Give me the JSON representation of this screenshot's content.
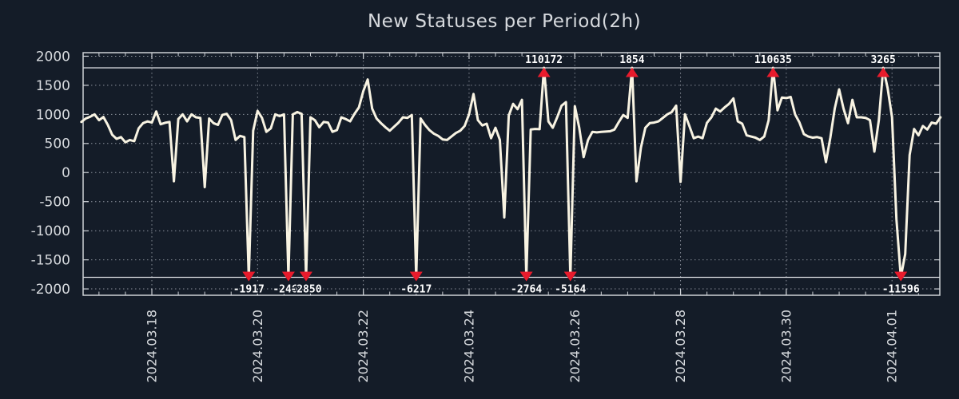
{
  "title": "New Statuses per Period(2h)",
  "colors": {
    "background": "#141c28",
    "line": "#f8f3e2",
    "grid": "#878d97",
    "frame": "#cdd1d6",
    "clip_line": "#dde0e4",
    "text": "#d7dade",
    "annotation_text": "#ffffff",
    "marker": "#e81b2c"
  },
  "chart_data": {
    "type": "line",
    "title": "New Statuses per Period(2h)",
    "grid": true,
    "legend": false,
    "x_axis": {
      "start": "2024-03-16 16:00",
      "step_hours": 2,
      "tick_labels": [
        "2024.03.18",
        "2024.03.20",
        "2024.03.22",
        "2024.03.24",
        "2024.03.26",
        "2024.03.28",
        "2024.03.30",
        "2024.04.01"
      ],
      "tick_indices": [
        16,
        40,
        64,
        88,
        112,
        136,
        160,
        184
      ],
      "minor_tick_every": 6
    },
    "y_axis": {
      "min": -2000,
      "max": 2000,
      "tick_step": 500,
      "tick_labels": [
        "2000",
        "1500",
        "1000",
        "500",
        "0",
        "-500",
        "-1000",
        "-1500",
        "-2000"
      ],
      "tick_values": [
        2000,
        1500,
        1000,
        500,
        0,
        -500,
        -1000,
        -1500,
        -2000
      ]
    },
    "clip_limits": [
      -1800,
      1800
    ],
    "series": [
      {
        "name": "new_statuses",
        "values": [
          870,
          930,
          960,
          1000,
          900,
          955,
          820,
          650,
          580,
          610,
          520,
          560,
          540,
          760,
          850,
          880,
          860,
          1050,
          830,
          855,
          870,
          -150,
          920,
          1000,
          880,
          1000,
          950,
          940,
          -250,
          930,
          850,
          820,
          990,
          1010,
          900,
          560,
          630,
          610,
          -1917,
          720,
          1060,
          940,
          700,
          760,
          1000,
          970,
          1000,
          -2469,
          1000,
          1040,
          1010,
          -2850,
          950,
          900,
          780,
          870,
          860,
          700,
          730,
          950,
          920,
          880,
          1010,
          1120,
          1400,
          1600,
          1100,
          930,
          850,
          780,
          720,
          790,
          860,
          950,
          940,
          990,
          -6217,
          930,
          820,
          730,
          670,
          630,
          570,
          560,
          620,
          680,
          720,
          800,
          1000,
          1350,
          900,
          810,
          840,
          590,
          770,
          560,
          -770,
          980,
          1180,
          1090,
          1250,
          -2764,
          740,
          750,
          745,
          110172,
          880,
          770,
          950,
          1150,
          1210,
          -5164,
          1140,
          770,
          265,
          560,
          700,
          690,
          700,
          705,
          710,
          740,
          870,
          990,
          940,
          1854,
          -150,
          430,
          770,
          850,
          860,
          880,
          940,
          1000,
          1040,
          1150,
          -160,
          1000,
          800,
          590,
          620,
          590,
          855,
          950,
          1100,
          1050,
          1120,
          1180,
          1275,
          880,
          840,
          640,
          620,
          600,
          560,
          620,
          900,
          110635,
          1070,
          1290,
          1280,
          1300,
          1000,
          860,
          660,
          620,
          600,
          610,
          590,
          180,
          600,
          1100,
          1430,
          1100,
          850,
          1250,
          950,
          950,
          940,
          900,
          360,
          900,
          3265,
          1450,
          950,
          -800,
          -11596,
          -1400,
          300,
          750,
          640,
          800,
          740,
          860,
          840,
          950
        ]
      }
    ],
    "annotations": [
      {
        "index": 38,
        "value": -1917,
        "label": "-1917",
        "direction": "down"
      },
      {
        "index": 47,
        "value": -2469,
        "label": "-2469",
        "direction": "down"
      },
      {
        "index": 51,
        "value": -2850,
        "label": "-2850",
        "direction": "down"
      },
      {
        "index": 76,
        "value": -6217,
        "label": "-6217",
        "direction": "down"
      },
      {
        "index": 101,
        "value": -2764,
        "label": "-2764",
        "direction": "down"
      },
      {
        "index": 105,
        "value": 110172,
        "label": "110172",
        "direction": "up"
      },
      {
        "index": 111,
        "value": -5164,
        "label": "-5164",
        "direction": "down"
      },
      {
        "index": 125,
        "value": 1854,
        "label": "1854",
        "direction": "up"
      },
      {
        "index": 157,
        "value": 110635,
        "label": "110635",
        "direction": "up"
      },
      {
        "index": 182,
        "value": 3265,
        "label": "3265",
        "direction": "up"
      },
      {
        "index": 186,
        "value": -11596,
        "label": "-11596",
        "direction": "down"
      }
    ]
  }
}
